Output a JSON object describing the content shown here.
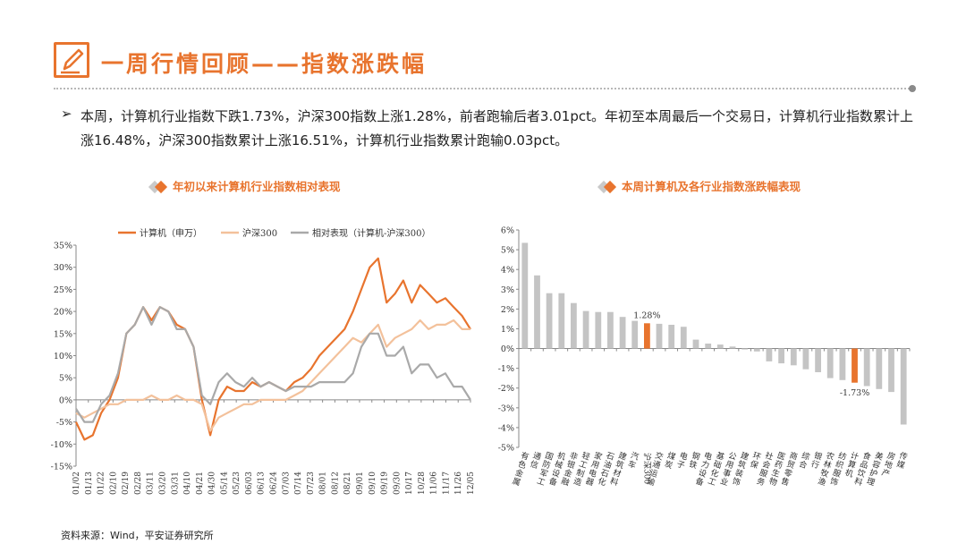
{
  "header": {
    "title": "一周行情回顾——指数涨跌幅",
    "icon": "pen-edit-icon"
  },
  "summary": {
    "bullet": "➢",
    "text": "本周，计算机行业指数下跌1.73%，沪深300指数上涨1.28%，前者跑输后者3.01pct。年初至本周最后一个交易日，计算机行业指数累计上涨16.48%，沪深300指数累计上涨16.51%，计算机行业指数累计跑输0.03pct。"
  },
  "colors": {
    "accent": "#e8742e",
    "hs300": "#f3c19b",
    "relative": "#a9a9a9",
    "bar_default": "#c4c4c4",
    "bar_highlight": "#e8742e"
  },
  "chart_data": [
    {
      "type": "line",
      "title": "年初以来计算机行业指数相对表现",
      "xlabel": "",
      "ylabel": "",
      "ylim": [
        -15,
        35
      ],
      "y_ticks": [
        "35%",
        "30%",
        "25%",
        "20%",
        "15%",
        "10%",
        "5%",
        "0%",
        "-5%",
        "-10%",
        "-15%"
      ],
      "y_tick_values": [
        35,
        30,
        25,
        20,
        15,
        10,
        5,
        0,
        -5,
        -10,
        -15
      ],
      "x_ticks": [
        "01/02",
        "01/13",
        "01/22",
        "02/10",
        "02/19",
        "02/28",
        "03/11",
        "03/20",
        "03/31",
        "04/10",
        "04/21",
        "04/30",
        "05/14",
        "05/23",
        "06/03",
        "06/13",
        "06/24",
        "07/03",
        "07/14",
        "07/23",
        "08/01",
        "08/12",
        "08/21",
        "09/01",
        "09/10",
        "09/19",
        "09/30",
        "10/17",
        "10/28",
        "11/06",
        "11/17",
        "11/26",
        "12/05"
      ],
      "legend_position": "top",
      "series": [
        {
          "name": "计算机（申万）",
          "color": "#e8742e",
          "values": [
            -5,
            -9,
            -8,
            -3,
            0,
            5,
            15,
            17,
            21,
            18,
            21,
            20,
            17,
            16,
            12,
            0,
            -8,
            0,
            3,
            2,
            2,
            4,
            3,
            4,
            3,
            2,
            4,
            5,
            7,
            10,
            12,
            14,
            16,
            20,
            25,
            30,
            32,
            22,
            24,
            27,
            22,
            26,
            24,
            22,
            23,
            21,
            19,
            16
          ]
        },
        {
          "name": "沪深300",
          "color": "#f3c19b",
          "values": [
            -3,
            -4,
            -3,
            -2,
            -1,
            -1,
            0,
            0,
            0,
            1,
            0,
            0,
            1,
            0,
            0,
            -1,
            -7,
            -4,
            -3,
            -2,
            -1,
            -1,
            0,
            0,
            0,
            0,
            1,
            2,
            4,
            6,
            8,
            10,
            12,
            14,
            13,
            15,
            17,
            12,
            14,
            15,
            16,
            18,
            16,
            17,
            17,
            18,
            16,
            16
          ]
        },
        {
          "name": "相对表现（计算机-沪深300）",
          "color": "#a9a9a9",
          "values": [
            -2,
            -5,
            -5,
            -1,
            1,
            6,
            15,
            17,
            21,
            17,
            21,
            20,
            16,
            16,
            12,
            1,
            -1,
            4,
            6,
            4,
            3,
            5,
            3,
            4,
            3,
            2,
            3,
            3,
            3,
            4,
            4,
            4,
            4,
            6,
            12,
            15,
            15,
            10,
            10,
            12,
            6,
            8,
            8,
            5,
            6,
            3,
            3,
            0
          ]
        }
      ]
    },
    {
      "type": "bar",
      "title": "本周计算机及各行业指数涨跌幅表现",
      "xlabel": "",
      "ylabel": "",
      "ylim": [
        -5,
        6
      ],
      "y_ticks": [
        "6%",
        "5%",
        "4%",
        "3%",
        "2%",
        "1%",
        "0%",
        "-1%",
        "-2%",
        "-3%",
        "-4%",
        "-5%"
      ],
      "y_tick_values": [
        6,
        5,
        4,
        3,
        2,
        1,
        0,
        -1,
        -2,
        -3,
        -4,
        -5
      ],
      "categories": [
        "有色金属",
        "通信",
        "国防军工",
        "机械设备",
        "非银金融",
        "轻工制造",
        "家用电器",
        "石油石化",
        "建筑材料",
        "汽车",
        "沪深300",
        "交通运输",
        "煤炭",
        "电子",
        "钢铁",
        "电力设备",
        "基础化工",
        "公用事业",
        "建筑装饰",
        "环保",
        "社会服务",
        "医药生物",
        "商贸零售",
        "综合",
        "银行",
        "农林牧渔",
        "纺织服饰",
        "计算机",
        "食品饮料",
        "美容护理",
        "房地产",
        "传媒"
      ],
      "values": [
        5.35,
        3.7,
        2.8,
        2.8,
        2.3,
        1.9,
        1.85,
        1.85,
        1.6,
        1.4,
        1.28,
        1.25,
        1.2,
        1.1,
        0.45,
        0.25,
        0.2,
        0.1,
        -0.05,
        -0.15,
        -0.65,
        -0.75,
        -0.85,
        -1.05,
        -1.2,
        -1.5,
        -1.6,
        -1.73,
        -1.9,
        -2.05,
        -2.2,
        -3.85
      ],
      "highlight": [
        "沪深300",
        "计算机"
      ],
      "data_labels": {
        "沪深300": "1.28%",
        "计算机": "-1.73%"
      }
    }
  ],
  "source": "资料来源：Wind，平安证券研究所"
}
